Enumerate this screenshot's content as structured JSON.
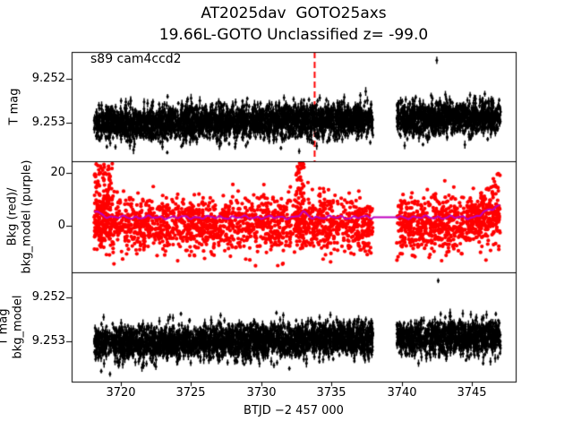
{
  "figure": {
    "title": "AT2025dav  GOTO25axs",
    "subtitle": "19.66L-GOTO Unclassified z= -99.0",
    "xlabel": "BTJD −2 457 000",
    "background": "#ffffff"
  },
  "colors": {
    "flux_points": "#000000",
    "bkg_points": "#ff0000",
    "bkg_model_line": "#bf00bf",
    "vline": "#ff0000",
    "frame": "#000000",
    "text": "#000000"
  },
  "x_axis": {
    "ticks": [
      3720,
      3725,
      3730,
      3735,
      3740,
      3745
    ],
    "lim": [
      3716.49,
      3748.12
    ],
    "data_segments": [
      [
        3718.1,
        3737.95
      ],
      [
        3739.65,
        3747.05
      ]
    ]
  },
  "chart_data": [
    {
      "type": "scatter",
      "name": "target-flux",
      "annotation": "s89 cam4ccd2",
      "ylabel": "T mag",
      "yticks": [
        9.252,
        9.253
      ],
      "ylim_top": 9.25139,
      "ylim_bottom": 9.25388,
      "y_inverted_mag_axis": true,
      "marker_color": "#000000",
      "gen": {
        "kind": "mag",
        "n": 3900,
        "center_start": 9.25303,
        "slope_per_day": -5.5e-06,
        "sigma": 0.00019
      },
      "outliers_high": [
        [
          3742.5,
          9.25158
        ]
      ],
      "outliers_low": [
        [
          3720.9,
          9.25362
        ],
        [
          3723.3,
          9.25368
        ],
        [
          3731.4,
          9.25358
        ],
        [
          3732.7,
          9.25365
        ],
        [
          3719.0,
          9.25355
        ],
        [
          3744.5,
          9.2535
        ]
      ],
      "vline": {
        "x": 3733.8,
        "color": "#ff0000",
        "style": "dashed"
      }
    },
    {
      "type": "scatter+line",
      "name": "background-vs-model",
      "ylabel_lines": [
        "Bkg (red)/",
        "bkg_model (purple)"
      ],
      "yticks": [
        20,
        0
      ],
      "ylim_top": 24.4,
      "ylim_bottom": -17.6,
      "marker_color": "#ff0000",
      "line_color": "#bf00bf",
      "gen": {
        "kind": "bkg",
        "n": 2500,
        "base": 0.5,
        "sigma": 5.0,
        "low_min": -15.5,
        "start_spike_until": 3719.4,
        "start_spike_n": 140,
        "mid_spike_x": 3732.75,
        "mid_spike_n": 55,
        "side_spike_x": 3734.3,
        "side_spike_n": 22,
        "end_rise_from": 3743.8,
        "end_rise_rate": 2.0,
        "end_spike_n": 85
      },
      "line": {
        "base": 3.2,
        "start_until": 3719.2,
        "start_rate": 2.2,
        "bump_x": 3733.0,
        "bump_amp": 1.7,
        "bump_w": 0.35,
        "end_from": 3745.2,
        "end_rate": 2.6,
        "wiggle": 0.4
      }
    },
    {
      "type": "scatter",
      "name": "flux-bkg-model",
      "ylabel_lines": [
        "T mag",
        "bkg_model"
      ],
      "yticks": [
        9.252,
        9.253
      ],
      "ylim_top": 9.25143,
      "ylim_bottom": 9.25392,
      "y_inverted_mag_axis": true,
      "marker_color": "#000000",
      "gen": {
        "kind": "mag",
        "n": 3900,
        "center_start": 9.25306,
        "slope_per_day": -6.2e-06,
        "sigma": 0.00019
      },
      "outliers_high": [
        [
          3742.6,
          9.25162
        ]
      ],
      "outliers_low": [
        [
          3718.6,
          9.25368
        ],
        [
          3721.5,
          9.2536
        ],
        [
          3730.9,
          9.25355
        ],
        [
          3732.0,
          9.25362
        ],
        [
          3741.2,
          9.2535
        ],
        [
          3745.8,
          9.2535
        ]
      ]
    }
  ]
}
